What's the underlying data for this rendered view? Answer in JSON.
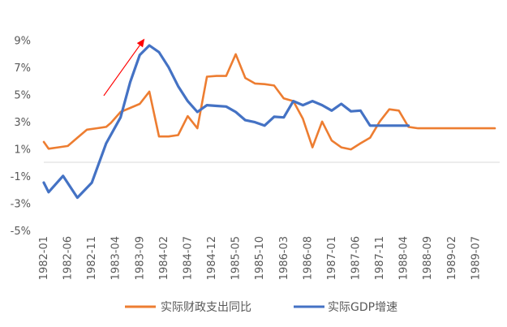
{
  "chart_data": {
    "type": "line",
    "title": "",
    "xlabel": "",
    "ylabel": "",
    "ylim": [
      -5,
      10
    ],
    "y_ticks": [
      -5,
      -3,
      -1,
      1,
      3,
      5,
      7,
      9
    ],
    "y_tick_labels": [
      "-5%",
      "-3%",
      "-1%",
      "1%",
      "3%",
      "5%",
      "7%",
      "9%"
    ],
    "x_tick_labels": [
      "1982-01",
      "1982-06",
      "1982-11",
      "1983-04",
      "1983-09",
      "1984-02",
      "1984-07",
      "1984-12",
      "1985-05",
      "1985-10",
      "1986-03",
      "1986-08",
      "1987-01",
      "1987-06",
      "1987-11",
      "1988-04",
      "1988-09",
      "1989-02",
      "1989-07"
    ],
    "grid": false,
    "legend_position": "bottom",
    "series": [
      {
        "name": "实际财政支出同比",
        "color": "#ED7D31",
        "x": [
          1,
          2,
          4,
          6,
          8,
          10,
          12,
          14,
          15,
          17,
          19,
          21,
          23,
          25,
          27,
          29,
          31,
          33,
          35,
          37,
          39,
          41,
          43,
          45,
          47,
          49,
          51,
          53,
          55,
          57,
          59,
          61,
          63,
          65,
          67,
          69,
          71,
          73,
          75,
          77,
          79,
          81,
          83,
          85,
          87,
          89,
          91,
          93,
          95
        ],
        "y": [
          1.5,
          1.0,
          1.1,
          1.2,
          1.8,
          2.4,
          2.5,
          2.6,
          2.9,
          3.7,
          4.0,
          4.3,
          5.2,
          1.9,
          1.9,
          2.0,
          3.4,
          2.5,
          6.3,
          6.35,
          6.35,
          7.95,
          6.2,
          5.8,
          5.75,
          5.65,
          4.7,
          4.5,
          3.2,
          1.1,
          3.0,
          1.6,
          1.1,
          0.95,
          1.4,
          1.8,
          3.0,
          3.9,
          3.8,
          2.6,
          2.5,
          2.5,
          2.5,
          2.5,
          2.5,
          2.5,
          2.5,
          2.5,
          2.5
        ]
      },
      {
        "name": "实际GDP增速",
        "color": "#4472C4",
        "x": [
          1,
          2,
          5,
          8,
          11,
          14,
          17,
          19,
          21,
          23,
          25,
          27,
          29,
          31,
          33,
          35,
          37,
          39,
          41,
          43,
          45,
          47,
          49,
          51,
          53,
          55,
          57,
          59,
          61,
          63,
          65,
          67,
          69,
          71,
          73,
          75,
          77
        ],
        "y": [
          -1.5,
          -2.2,
          -1.0,
          -2.6,
          -1.5,
          1.4,
          3.3,
          5.9,
          7.9,
          8.6,
          8.1,
          7.0,
          5.6,
          4.5,
          3.7,
          4.2,
          4.15,
          4.1,
          3.7,
          3.1,
          2.95,
          2.7,
          3.35,
          3.3,
          4.5,
          4.2,
          4.5,
          4.2,
          3.8,
          4.3,
          3.75,
          3.8,
          2.7,
          2.7,
          2.7,
          2.7,
          2.7
        ]
      }
    ],
    "annotations": [
      {
        "type": "arrow",
        "color": "#FF0000",
        "from": [
          13.5,
          4.9
        ],
        "to": [
          22,
          9.1
        ]
      }
    ]
  }
}
